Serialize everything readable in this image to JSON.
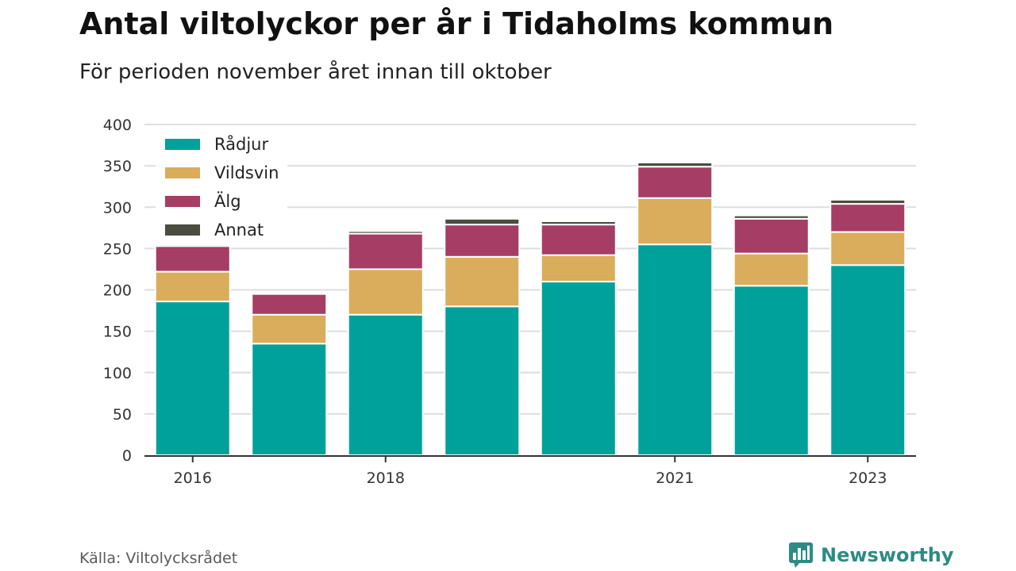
{
  "header": {
    "title": "Antal viltolyckor per år i Tidaholms kommun",
    "subtitle": "För perioden november året innan till oktober"
  },
  "footer": {
    "source": "Källa: Viltolycksrådet",
    "brand": "Newsworthy",
    "brand_icon": "bar-chart-speech-bubble-icon"
  },
  "chart_data": {
    "type": "bar",
    "stacked": true,
    "categories": [
      "2016",
      "2017",
      "2018",
      "2019",
      "2020",
      "2021",
      "2022",
      "2023"
    ],
    "x_tick_labels": [
      "2016",
      "",
      "2018",
      "",
      "",
      "2021",
      "",
      "2023"
    ],
    "series": [
      {
        "name": "Rådjur",
        "color": "#00a19a",
        "values": [
          186,
          135,
          170,
          180,
          210,
          255,
          205,
          230
        ]
      },
      {
        "name": "Vildsvin",
        "color": "#d9ad5b",
        "values": [
          36,
          35,
          55,
          60,
          32,
          56,
          39,
          40
        ]
      },
      {
        "name": "Älg",
        "color": "#a53d65",
        "values": [
          31,
          25,
          43,
          39,
          37,
          38,
          42,
          34
        ]
      },
      {
        "name": "Annat",
        "color": "#4a4d3f",
        "values": [
          2,
          0,
          3,
          7,
          4,
          5,
          4,
          5
        ]
      }
    ],
    "ylim": [
      0,
      400
    ],
    "yticks": [
      0,
      50,
      100,
      150,
      200,
      250,
      300,
      350,
      400
    ],
    "grid": true,
    "legend": {
      "position": "top-left"
    },
    "xlabel": "",
    "ylabel": ""
  }
}
